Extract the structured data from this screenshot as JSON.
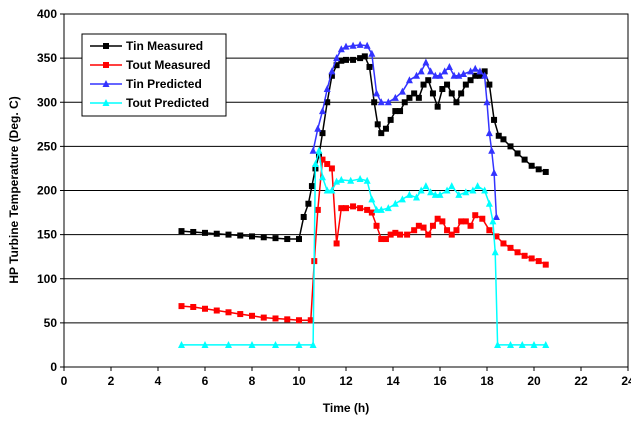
{
  "chart_data": {
    "type": "line",
    "xlabel": "Time (h)",
    "ylabel": "HP Turbine Temperature (Deg. C)",
    "xlim": [
      0,
      24
    ],
    "ylim": [
      0,
      400
    ],
    "x_ticks": [
      0,
      2,
      4,
      6,
      8,
      10,
      12,
      14,
      16,
      18,
      20,
      22,
      24
    ],
    "y_ticks": [
      0,
      50,
      100,
      150,
      200,
      250,
      300,
      350,
      400
    ],
    "grid": "horizontal",
    "legend_position": "top-left",
    "series": [
      {
        "name": "Tin Measured",
        "color": "#000000",
        "marker": "square",
        "points": [
          [
            5.0,
            154
          ],
          [
            5.5,
            153
          ],
          [
            6.0,
            152
          ],
          [
            6.5,
            151
          ],
          [
            7.0,
            150
          ],
          [
            7.5,
            149
          ],
          [
            8.0,
            148
          ],
          [
            8.5,
            147
          ],
          [
            9.0,
            146
          ],
          [
            9.5,
            145
          ],
          [
            10.0,
            145
          ],
          [
            10.2,
            170
          ],
          [
            10.4,
            185
          ],
          [
            10.55,
            205
          ],
          [
            10.7,
            225
          ],
          [
            10.85,
            240
          ],
          [
            11.0,
            265
          ],
          [
            11.2,
            300
          ],
          [
            11.4,
            330
          ],
          [
            11.6,
            342
          ],
          [
            11.8,
            347
          ],
          [
            12.0,
            348
          ],
          [
            12.3,
            348
          ],
          [
            12.6,
            350
          ],
          [
            12.8,
            352
          ],
          [
            13.0,
            340
          ],
          [
            13.2,
            300
          ],
          [
            13.35,
            275
          ],
          [
            13.5,
            265
          ],
          [
            13.7,
            270
          ],
          [
            13.9,
            280
          ],
          [
            14.1,
            290
          ],
          [
            14.3,
            290
          ],
          [
            14.5,
            300
          ],
          [
            14.7,
            305
          ],
          [
            14.9,
            310
          ],
          [
            15.1,
            305
          ],
          [
            15.3,
            320
          ],
          [
            15.5,
            325
          ],
          [
            15.7,
            310
          ],
          [
            15.9,
            295
          ],
          [
            16.1,
            315
          ],
          [
            16.3,
            320
          ],
          [
            16.5,
            310
          ],
          [
            16.7,
            300
          ],
          [
            16.9,
            310
          ],
          [
            17.1,
            320
          ],
          [
            17.3,
            325
          ],
          [
            17.5,
            330
          ],
          [
            17.7,
            330
          ],
          [
            17.9,
            335
          ],
          [
            18.1,
            320
          ],
          [
            18.3,
            280
          ],
          [
            18.5,
            262
          ],
          [
            18.7,
            258
          ],
          [
            19.0,
            250
          ],
          [
            19.3,
            242
          ],
          [
            19.6,
            235
          ],
          [
            19.9,
            228
          ],
          [
            20.2,
            224
          ],
          [
            20.5,
            221
          ]
        ]
      },
      {
        "name": "Tout Measured",
        "color": "#ff0000",
        "marker": "square",
        "points": [
          [
            5.0,
            69
          ],
          [
            5.5,
            68
          ],
          [
            6.0,
            66
          ],
          [
            6.5,
            64
          ],
          [
            7.0,
            62
          ],
          [
            7.5,
            60
          ],
          [
            8.0,
            58
          ],
          [
            8.5,
            56
          ],
          [
            9.0,
            55
          ],
          [
            9.5,
            54
          ],
          [
            10.0,
            53
          ],
          [
            10.5,
            53
          ],
          [
            10.65,
            120
          ],
          [
            10.8,
            178
          ],
          [
            11.0,
            235
          ],
          [
            11.2,
            230
          ],
          [
            11.4,
            225
          ],
          [
            11.6,
            140
          ],
          [
            11.8,
            180
          ],
          [
            12.0,
            180
          ],
          [
            12.3,
            182
          ],
          [
            12.6,
            180
          ],
          [
            12.9,
            178
          ],
          [
            13.1,
            175
          ],
          [
            13.3,
            160
          ],
          [
            13.5,
            145
          ],
          [
            13.7,
            145
          ],
          [
            13.9,
            150
          ],
          [
            14.1,
            152
          ],
          [
            14.3,
            150
          ],
          [
            14.6,
            150
          ],
          [
            14.9,
            155
          ],
          [
            15.1,
            160
          ],
          [
            15.3,
            158
          ],
          [
            15.5,
            150
          ],
          [
            15.7,
            160
          ],
          [
            15.9,
            168
          ],
          [
            16.1,
            165
          ],
          [
            16.3,
            155
          ],
          [
            16.5,
            150
          ],
          [
            16.7,
            155
          ],
          [
            16.9,
            165
          ],
          [
            17.1,
            165
          ],
          [
            17.3,
            160
          ],
          [
            17.5,
            172
          ],
          [
            17.8,
            168
          ],
          [
            18.1,
            155
          ],
          [
            18.4,
            148
          ],
          [
            18.7,
            140
          ],
          [
            19.0,
            135
          ],
          [
            19.3,
            130
          ],
          [
            19.6,
            126
          ],
          [
            19.9,
            123
          ],
          [
            20.2,
            120
          ],
          [
            20.5,
            116
          ]
        ]
      },
      {
        "name": "Tin Predicted",
        "color": "#3333ff",
        "marker": "triangle",
        "points": [
          [
            10.6,
            245
          ],
          [
            10.8,
            270
          ],
          [
            11.0,
            290
          ],
          [
            11.2,
            315
          ],
          [
            11.4,
            335
          ],
          [
            11.6,
            350
          ],
          [
            11.8,
            360
          ],
          [
            12.0,
            363
          ],
          [
            12.3,
            364
          ],
          [
            12.6,
            365
          ],
          [
            12.9,
            364
          ],
          [
            13.1,
            355
          ],
          [
            13.3,
            310
          ],
          [
            13.5,
            300
          ],
          [
            13.8,
            300
          ],
          [
            14.1,
            305
          ],
          [
            14.4,
            312
          ],
          [
            14.7,
            325
          ],
          [
            15.0,
            330
          ],
          [
            15.2,
            335
          ],
          [
            15.4,
            345
          ],
          [
            15.6,
            335
          ],
          [
            15.8,
            330
          ],
          [
            16.0,
            330
          ],
          [
            16.2,
            335
          ],
          [
            16.4,
            340
          ],
          [
            16.6,
            330
          ],
          [
            16.8,
            330
          ],
          [
            17.0,
            332
          ],
          [
            17.3,
            335
          ],
          [
            17.5,
            338
          ],
          [
            17.7,
            335
          ],
          [
            17.9,
            330
          ],
          [
            18.0,
            300
          ],
          [
            18.1,
            265
          ],
          [
            18.2,
            245
          ],
          [
            18.3,
            220
          ],
          [
            18.4,
            170
          ]
        ]
      },
      {
        "name": "Tout Predicted",
        "color": "#00ffff",
        "marker": "triangle",
        "points": [
          [
            5.0,
            25
          ],
          [
            6.0,
            25
          ],
          [
            7.0,
            25
          ],
          [
            8.0,
            25
          ],
          [
            9.0,
            25
          ],
          [
            10.0,
            25
          ],
          [
            10.6,
            25
          ],
          [
            10.7,
            230
          ],
          [
            10.85,
            245
          ],
          [
            11.0,
            215
          ],
          [
            11.2,
            200
          ],
          [
            11.4,
            200
          ],
          [
            11.6,
            210
          ],
          [
            11.8,
            212
          ],
          [
            12.2,
            211
          ],
          [
            12.6,
            213
          ],
          [
            12.9,
            211
          ],
          [
            13.1,
            190
          ],
          [
            13.3,
            178
          ],
          [
            13.5,
            178
          ],
          [
            13.8,
            180
          ],
          [
            14.1,
            185
          ],
          [
            14.4,
            190
          ],
          [
            14.7,
            195
          ],
          [
            15.0,
            192
          ],
          [
            15.2,
            200
          ],
          [
            15.4,
            205
          ],
          [
            15.6,
            198
          ],
          [
            15.8,
            195
          ],
          [
            16.0,
            195
          ],
          [
            16.3,
            200
          ],
          [
            16.5,
            205
          ],
          [
            16.8,
            195
          ],
          [
            17.1,
            198
          ],
          [
            17.4,
            200
          ],
          [
            17.6,
            205
          ],
          [
            17.9,
            200
          ],
          [
            18.1,
            185
          ],
          [
            18.25,
            165
          ],
          [
            18.35,
            130
          ],
          [
            18.45,
            25
          ],
          [
            19.0,
            25
          ],
          [
            19.5,
            25
          ],
          [
            20.0,
            25
          ],
          [
            20.5,
            25
          ]
        ]
      }
    ]
  }
}
